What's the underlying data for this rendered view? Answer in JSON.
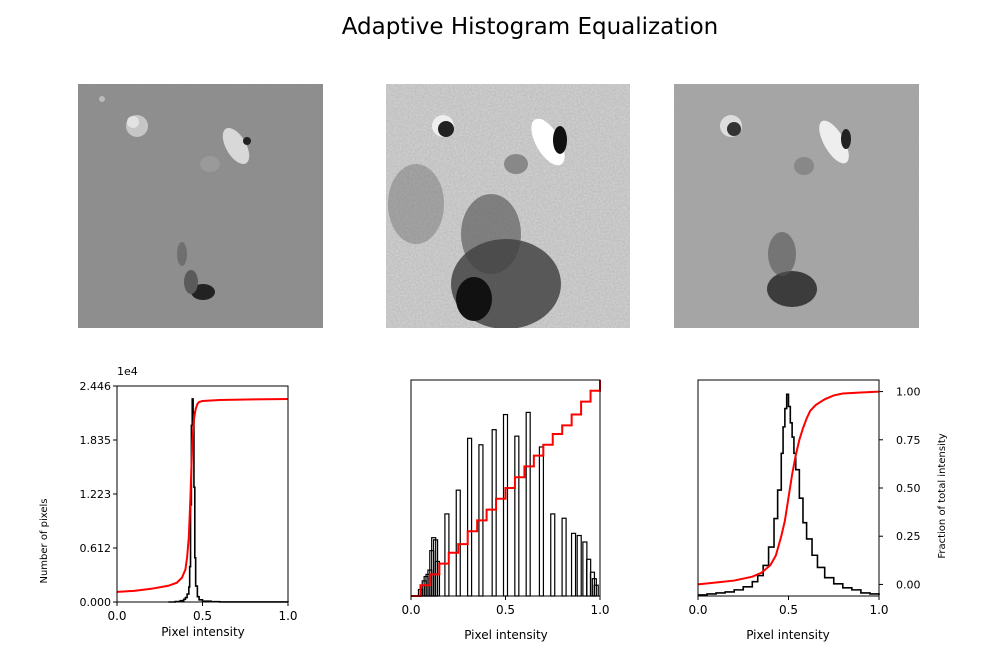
{
  "title": "Adaptive Histogram Equalization",
  "images": [
    {
      "name": "low-contrast-image",
      "tone": "flat-gray",
      "base": "#8a8a8a"
    },
    {
      "name": "histogram-equalized-image",
      "tone": "high-contrast",
      "base": "#cfcfcf"
    },
    {
      "name": "adaptive-equalized-image",
      "tone": "mid-contrast",
      "base": "#a2a2a2"
    }
  ],
  "chart_data": [
    {
      "type": "histogram",
      "xlabel": "Pixel intensity",
      "ylabel": "Number of pixels",
      "y_offset_text": "1e4",
      "xlim": [
        0,
        1
      ],
      "ylim": [
        0,
        24460
      ],
      "xticks": [
        "0.0",
        "0.5",
        "1.0"
      ],
      "xtick_values": [
        0,
        0.5,
        1
      ],
      "yticks": [
        "0.000",
        "0.612",
        "1.223",
        "1.835",
        "2.446"
      ],
      "ytick_values": [
        0,
        6115,
        12230,
        18345,
        24460
      ],
      "histogram": {
        "x": [
          0.3,
          0.34,
          0.37,
          0.39,
          0.4,
          0.41,
          0.42,
          0.425,
          0.43,
          0.435,
          0.44,
          0.445,
          0.45,
          0.455,
          0.46,
          0.47,
          0.48,
          0.5,
          0.55,
          0.6,
          0.8,
          1.0
        ],
        "y": [
          0,
          50,
          150,
          300,
          500,
          900,
          1700,
          4000,
          11000,
          20000,
          23000,
          21500,
          13000,
          5000,
          1800,
          600,
          250,
          100,
          40,
          10,
          5,
          0
        ]
      },
      "cdf": {
        "x": [
          0,
          0.1,
          0.2,
          0.3,
          0.35,
          0.38,
          0.4,
          0.41,
          0.42,
          0.425,
          0.43,
          0.435,
          0.44,
          0.45,
          0.46,
          0.47,
          0.48,
          0.5,
          0.6,
          0.8,
          1.0
        ],
        "y": [
          0.05,
          0.055,
          0.065,
          0.08,
          0.095,
          0.12,
          0.16,
          0.22,
          0.32,
          0.42,
          0.53,
          0.66,
          0.78,
          0.9,
          0.95,
          0.975,
          0.985,
          0.99,
          0.995,
          0.998,
          1.0
        ]
      },
      "colors": {
        "histogram": "#000000",
        "cdf": "#ff0000"
      }
    },
    {
      "type": "histogram",
      "xlabel": "Pixel intensity",
      "xlim": [
        0,
        1
      ],
      "ylim": [
        0,
        1
      ],
      "xticks": [
        "0.0",
        "0.5",
        "1.0"
      ],
      "xtick_values": [
        0,
        0.5,
        1
      ],
      "bars": {
        "x": [
          0.05,
          0.06,
          0.07,
          0.08,
          0.09,
          0.1,
          0.11,
          0.12,
          0.13,
          0.14,
          0.19,
          0.25,
          0.31,
          0.37,
          0.44,
          0.5,
          0.56,
          0.62,
          0.69,
          0.75,
          0.81,
          0.86,
          0.89,
          0.92,
          0.94,
          0.96,
          0.97,
          0.98
        ],
        "y": [
          0.03,
          0.05,
          0.07,
          0.09,
          0.1,
          0.12,
          0.21,
          0.27,
          0.26,
          0.16,
          0.38,
          0.49,
          0.73,
          0.7,
          0.77,
          0.84,
          0.74,
          0.85,
          0.69,
          0.38,
          0.36,
          0.29,
          0.28,
          0.25,
          0.17,
          0.11,
          0.08,
          0.05
        ]
      },
      "cdf": {
        "x": [
          0,
          0.05,
          0.1,
          0.15,
          0.2,
          0.25,
          0.3,
          0.35,
          0.4,
          0.45,
          0.5,
          0.55,
          0.6,
          0.65,
          0.7,
          0.75,
          0.8,
          0.85,
          0.9,
          0.95,
          1.0
        ],
        "y": [
          0,
          0.05,
          0.1,
          0.15,
          0.2,
          0.24,
          0.3,
          0.35,
          0.4,
          0.45,
          0.5,
          0.55,
          0.6,
          0.65,
          0.7,
          0.75,
          0.79,
          0.84,
          0.9,
          0.95,
          1.0
        ]
      },
      "colors": {
        "histogram": "#000000",
        "cdf": "#ff0000"
      }
    },
    {
      "type": "histogram",
      "xlabel": "Pixel intensity",
      "y2label": "Fraction of total intensity",
      "xlim": [
        0,
        1
      ],
      "ylim": [
        -0.06,
        1.06
      ],
      "xticks": [
        "0.0",
        "0.5",
        "1.0"
      ],
      "xtick_values": [
        0,
        0.5,
        1
      ],
      "y2ticks": [
        "0.00",
        "0.25",
        "0.50",
        "0.75",
        "1.00"
      ],
      "y2tick_values": [
        0,
        0.25,
        0.5,
        0.75,
        1
      ],
      "histogram": {
        "x": [
          0,
          0.05,
          0.1,
          0.15,
          0.2,
          0.25,
          0.3,
          0.33,
          0.36,
          0.39,
          0.42,
          0.44,
          0.46,
          0.47,
          0.48,
          0.49,
          0.5,
          0.51,
          0.52,
          0.53,
          0.54,
          0.56,
          0.58,
          0.6,
          0.63,
          0.66,
          0.7,
          0.75,
          0.8,
          0.85,
          0.9,
          0.95,
          1.0
        ],
        "y": [
          0.005,
          0.01,
          0.015,
          0.02,
          0.03,
          0.045,
          0.07,
          0.1,
          0.15,
          0.24,
          0.38,
          0.52,
          0.7,
          0.83,
          0.92,
          0.99,
          0.93,
          0.85,
          0.78,
          0.7,
          0.62,
          0.48,
          0.36,
          0.28,
          0.2,
          0.14,
          0.09,
          0.06,
          0.04,
          0.03,
          0.015,
          0.01,
          0.005
        ]
      },
      "cdf": {
        "x": [
          0,
          0.1,
          0.2,
          0.3,
          0.35,
          0.4,
          0.43,
          0.46,
          0.48,
          0.5,
          0.52,
          0.54,
          0.56,
          0.58,
          0.6,
          0.62,
          0.65,
          0.7,
          0.75,
          0.8,
          0.9,
          1.0
        ],
        "y": [
          0.0,
          0.01,
          0.02,
          0.04,
          0.06,
          0.1,
          0.15,
          0.25,
          0.33,
          0.45,
          0.57,
          0.67,
          0.75,
          0.81,
          0.86,
          0.9,
          0.93,
          0.96,
          0.98,
          0.99,
          0.995,
          1.0
        ]
      },
      "colors": {
        "histogram": "#000000",
        "cdf": "#ff0000"
      }
    }
  ]
}
